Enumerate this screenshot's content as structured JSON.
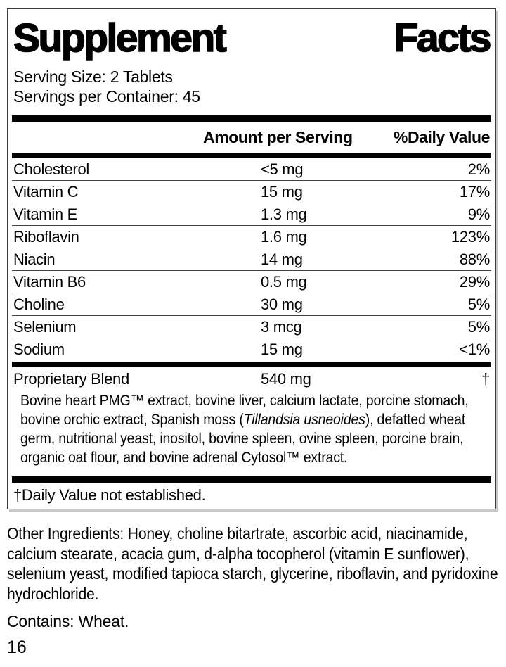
{
  "colors": {
    "text": "#000000",
    "background": "#ffffff",
    "divider_thick": "#000000",
    "divider_thin": "#414141",
    "box_border": "#3a3a3a"
  },
  "facts": {
    "title_words": [
      "Supplement",
      "Facts"
    ],
    "serving_size": "Serving Size: 2 Tablets",
    "servings_per_container": "Servings per Container: 45",
    "columns": {
      "amount": "Amount per Serving",
      "daily_value": "%Daily Value"
    },
    "rows": [
      {
        "name": "Cholesterol",
        "amount": "<5 mg",
        "dv": "2%"
      },
      {
        "name": "Vitamin C",
        "amount": "15 mg",
        "dv": "17%"
      },
      {
        "name": "Vitamin E",
        "amount": "1.3 mg",
        "dv": "9%"
      },
      {
        "name": "Riboflavin",
        "amount": "1.6 mg",
        "dv": "123%"
      },
      {
        "name": "Niacin",
        "amount": "14 mg",
        "dv": "88%"
      },
      {
        "name": "Vitamin B6",
        "amount": "0.5 mg",
        "dv": "29%"
      },
      {
        "name": "Choline",
        "amount": "30 mg",
        "dv": "5%"
      },
      {
        "name": "Selenium",
        "amount": "3 mcg",
        "dv": "5%"
      },
      {
        "name": "Sodium",
        "amount": "15 mg",
        "dv": "<1%"
      }
    ],
    "blend": {
      "name": "Proprietary Blend",
      "amount": "540 mg",
      "dv": "†",
      "description_pre": "Bovine heart PMG™ extract, bovine liver, calcium lactate, porcine stomach, bovine orchic extract, Spanish moss (",
      "description_italic": "Tillandsia usneoides",
      "description_post": "), defatted wheat germ, nutritional yeast, inositol, bovine spleen, ovine spleen, porcine brain, organic oat flour, and bovine adrenal Cytosol™ extract."
    },
    "footnote": "†Daily Value not established."
  },
  "below": {
    "other_ingredients": "Other Ingredients: Honey, choline bitartrate, ascorbic acid, niacinamide, calcium stearate, acacia gum, d-alpha tocopherol (vitamin E sunflower), selenium yeast, modified tapioca starch, glycerine, riboflavin, and pyridoxine hydrochloride.",
    "contains": "Contains: Wheat.",
    "page_number": "16"
  }
}
